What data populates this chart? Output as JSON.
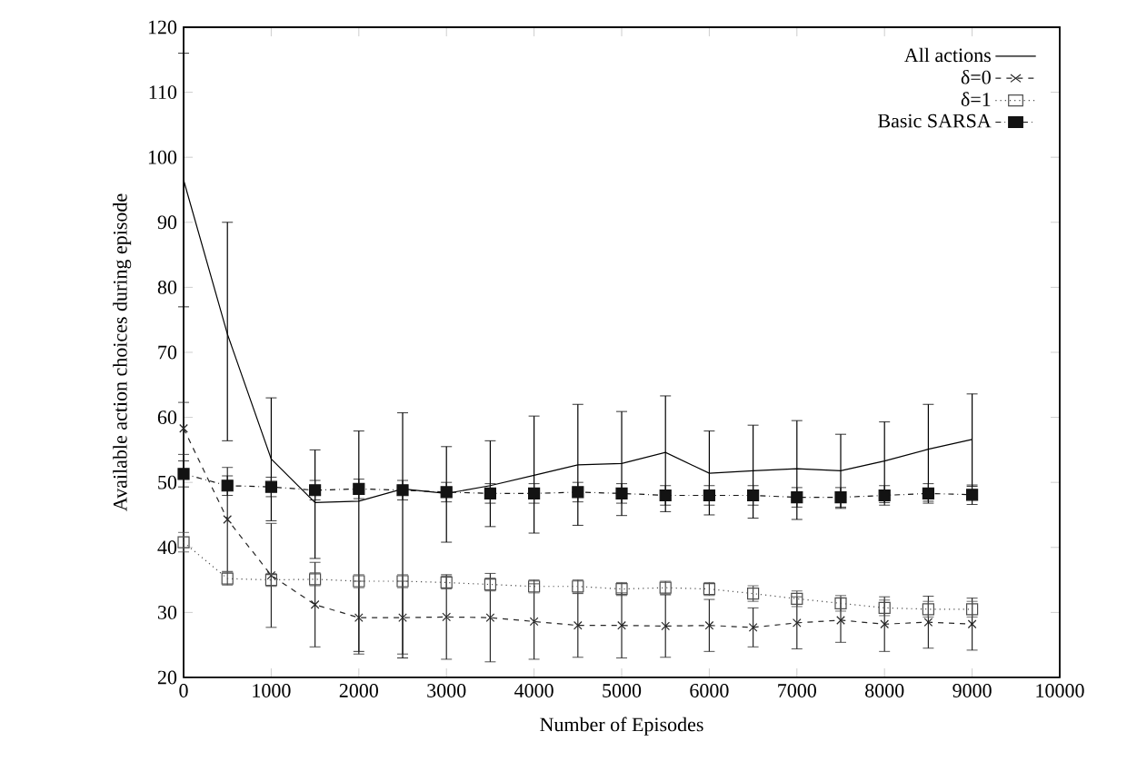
{
  "chart_data": {
    "type": "line",
    "xlabel": "Number of Episodes",
    "ylabel": "Available action choices during episode",
    "x": [
      0,
      500,
      1000,
      1500,
      2000,
      2500,
      3000,
      3500,
      4000,
      4500,
      5000,
      5500,
      6000,
      6500,
      7000,
      7500,
      8000,
      8500,
      9000
    ],
    "xlim": [
      0,
      10000
    ],
    "xticks": [
      0,
      1000,
      2000,
      3000,
      4000,
      5000,
      6000,
      7000,
      8000,
      9000,
      10000
    ],
    "ylim": [
      20,
      120
    ],
    "yticks": [
      20,
      30,
      40,
      50,
      60,
      70,
      80,
      90,
      100,
      110,
      120
    ],
    "grid": false,
    "legend": "top right",
    "series": [
      {
        "name": "All actions",
        "color": "#000000",
        "marker": "none",
        "line_style": "solid",
        "values": [
          96.5,
          72.8,
          53.6,
          46.9,
          47.1,
          49,
          48.3,
          49.5,
          51.1,
          52.7,
          52.9,
          54.6,
          51.4,
          51.8,
          52.1,
          51.8,
          53.3,
          55.1,
          56.6
        ],
        "errors": [
          [
            77,
            116
          ],
          [
            56.4,
            90
          ],
          [
            44.1,
            63
          ],
          [
            38.3,
            55
          ],
          [
            24,
            57.9
          ],
          [
            23,
            60.7
          ],
          [
            40.8,
            55.5
          ],
          [
            43.2,
            56.4
          ],
          [
            42.2,
            60.2
          ],
          [
            43.4,
            62
          ],
          [
            44.9,
            60.9
          ],
          [
            45.5,
            63.3
          ],
          [
            45,
            57.9
          ],
          [
            44.5,
            58.8
          ],
          [
            44.3,
            59.5
          ],
          [
            46,
            57.4
          ],
          [
            46.9,
            59.3
          ],
          [
            47.1,
            62
          ],
          [
            49.4,
            63.6
          ]
        ]
      },
      {
        "name": "δ=0",
        "color": "#262626",
        "marker": "cross",
        "line_style": "dashed",
        "values": [
          58.3,
          44.3,
          35.7,
          31.2,
          29.2,
          29.2,
          29.3,
          29.2,
          28.6,
          28,
          28,
          27.9,
          28,
          27.7,
          28.4,
          28.8,
          28.2,
          28.5,
          28.2
        ],
        "errors": [
          4,
          8,
          8,
          6.5,
          5.6,
          5.6,
          6.5,
          6.8,
          5.8,
          4.9,
          5,
          4.8,
          4,
          3,
          4,
          3.4,
          4.2,
          4,
          4
        ]
      },
      {
        "name": "δ=1",
        "color": "#4d4d4d",
        "marker": "square",
        "line_style": "dotted",
        "values": [
          40.8,
          35.2,
          35,
          35.1,
          34.8,
          34.8,
          34.6,
          34.3,
          34,
          34,
          33.6,
          33.8,
          33.6,
          32.9,
          32.1,
          31.4,
          30.7,
          30.5,
          30.5
        ],
        "errors": [
          1.5,
          1,
          1,
          1,
          1,
          1,
          1,
          1,
          1,
          1,
          1,
          1,
          1,
          1.2,
          1.2,
          1.2,
          1.2,
          1.2,
          1.2
        ]
      },
      {
        "name": "Basic SARSA",
        "color": "#131313",
        "marker": "square",
        "line_style": "dashdot",
        "values": [
          51.3,
          49.5,
          49.3,
          48.8,
          49,
          48.8,
          48.5,
          48.3,
          48.3,
          48.5,
          48.3,
          48,
          48,
          48,
          47.7,
          47.7,
          48,
          48.3,
          48.1
        ],
        "errors": [
          2,
          1.5,
          1.5,
          1.5,
          1.5,
          1.5,
          1.5,
          1.5,
          1.5,
          1.5,
          1.5,
          1.5,
          1.5,
          1.5,
          1.5,
          1.5,
          1.5,
          1.5,
          1.5
        ]
      }
    ]
  }
}
